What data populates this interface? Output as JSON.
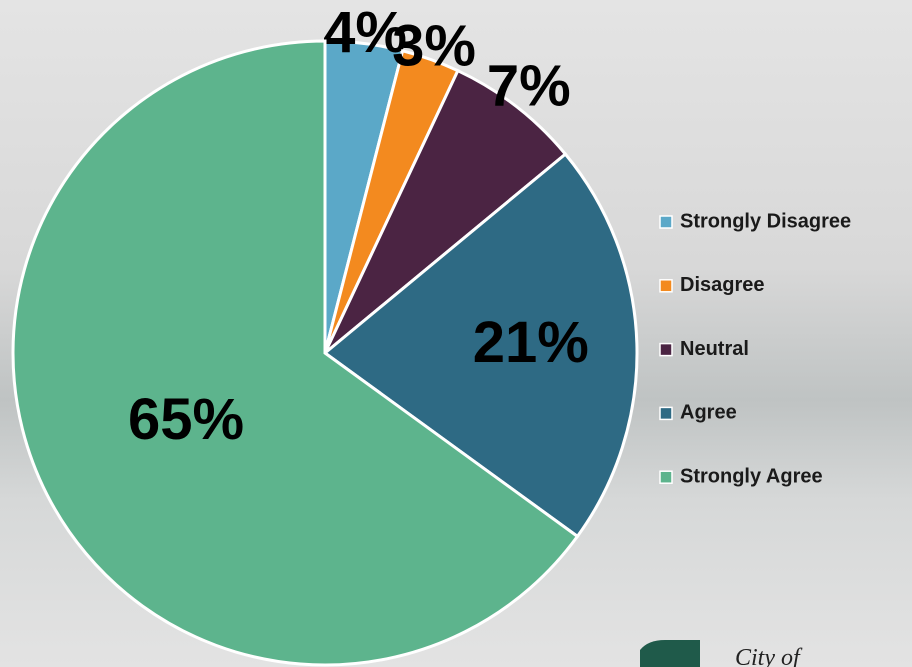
{
  "chart_data": {
    "type": "pie",
    "categories": [
      "Strongly Disagree",
      "Disagree",
      "Neutral",
      "Agree",
      "Strongly Agree"
    ],
    "values": [
      4,
      3,
      7,
      21,
      65
    ],
    "value_labels": [
      "4%",
      "3%",
      "7%",
      "21%",
      "65%"
    ],
    "colors": [
      "#5ba8c8",
      "#f38a1f",
      "#4b2443",
      "#2e6a84",
      "#5db48d"
    ],
    "legend": "right"
  },
  "logo": {
    "text": "City of"
  }
}
